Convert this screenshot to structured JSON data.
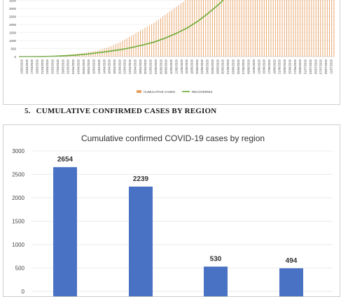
{
  "section": {
    "number": "5.",
    "title": "CUMULATIVE CONFIRMED CASES BY REGION"
  },
  "chart_data": [
    {
      "type": "bar+line",
      "title": "",
      "ylabel": "",
      "xlabel": "",
      "y_tick_labels": [
        "3500",
        "3000",
        "2500",
        "2000",
        "1500",
        "1000",
        "500",
        "0"
      ],
      "x_tick_labels": [
        "13/03/2020",
        "15/03/2020",
        "17/03/2020",
        "19/03/2020",
        "21/03/2020",
        "23/03/2020",
        "25/03/2020",
        "27/03/2020",
        "29/03/2020",
        "31/03/2020",
        "02/04/2020",
        "04/04/2020",
        "06/04/2020",
        "08/04/2020",
        "10/04/2020",
        "12/04/2020",
        "14/04/2020",
        "16/04/2020",
        "18/04/2020",
        "20/04/2020",
        "22/04/2020",
        "24/04/2020",
        "26/04/2020",
        "28/04/2020",
        "30/04/2020",
        "02/05/2020",
        "04/05/2020",
        "06/05/2020",
        "08/05/2020",
        "10/05/2020",
        "12/05/2020",
        "14/05/2020",
        "16/05/2020",
        "18/05/2020",
        "20/05/2020",
        "22/05/2020",
        "24/05/2020",
        "26/05/2020",
        "28/05/2020",
        "30/05/2020",
        "01/06/2020",
        "03/06/2020",
        "05/06/2020",
        "07/06/2020",
        "09/06/2020",
        "11/06/2020",
        "13/06/2020",
        "15/06/2020",
        "17/06/2020",
        "19/06/2020",
        "21/06/2020",
        "23/06/2020",
        "25/06/2020",
        "27/06/2020",
        "29/06/2020",
        "01/07/2020",
        "03/07/2020",
        "05/07/2020",
        "07/07/2020",
        "09/07/2020",
        "11/07/2020"
      ],
      "legend_position": "bottom",
      "series": [
        {
          "name": "CUMULATIVE CASES",
          "type": "bar",
          "color": "#e8a061",
          "points": [
            [
              0,
              0
            ],
            [
              10,
              5
            ],
            [
              20,
              15
            ],
            [
              30,
              40
            ],
            [
              40,
              80
            ],
            [
              50,
              160
            ],
            [
              60,
              260
            ],
            [
              70,
              380
            ],
            [
              80,
              600
            ],
            [
              90,
              900
            ],
            [
              100,
              1300
            ],
            [
              110,
              1700
            ],
            [
              120,
              2100
            ],
            [
              130,
              2600
            ],
            [
              140,
              3100
            ],
            [
              150,
              3600
            ],
            [
              160,
              4000
            ],
            [
              180,
              4600
            ],
            [
              200,
              5200
            ],
            [
              220,
              5600
            ],
            [
              240,
              5900
            ],
            [
              260,
              6100
            ],
            [
              280,
              6200
            ]
          ]
        },
        {
          "name": "RECOVERIES",
          "type": "line",
          "color": "#6aaa33",
          "points": [
            [
              0,
              0
            ],
            [
              10,
              2
            ],
            [
              20,
              5
            ],
            [
              30,
              20
            ],
            [
              40,
              50
            ],
            [
              50,
              90
            ],
            [
              60,
              150
            ],
            [
              70,
              240
            ],
            [
              80,
              330
            ],
            [
              90,
              430
            ],
            [
              100,
              560
            ],
            [
              110,
              720
            ],
            [
              120,
              900
            ],
            [
              130,
              1150
            ],
            [
              140,
              1450
            ],
            [
              150,
              1800
            ],
            [
              160,
              2250
            ],
            [
              170,
              2800
            ],
            [
              180,
              3400
            ],
            [
              182,
              3600
            ]
          ]
        }
      ]
    },
    {
      "type": "bar",
      "title": "Cumulative confirmed COVID-19 cases by region",
      "xlabel": "",
      "ylabel": "",
      "ylim": [
        0,
        3000
      ],
      "y_tick_labels": [
        "3000",
        "2500",
        "2000",
        "1500",
        "1000",
        "500",
        "0"
      ],
      "values": [
        2654,
        2239,
        530,
        494
      ],
      "data_labels": [
        "2654",
        "2239",
        "530",
        "494"
      ],
      "color": "#4a72c4"
    }
  ]
}
